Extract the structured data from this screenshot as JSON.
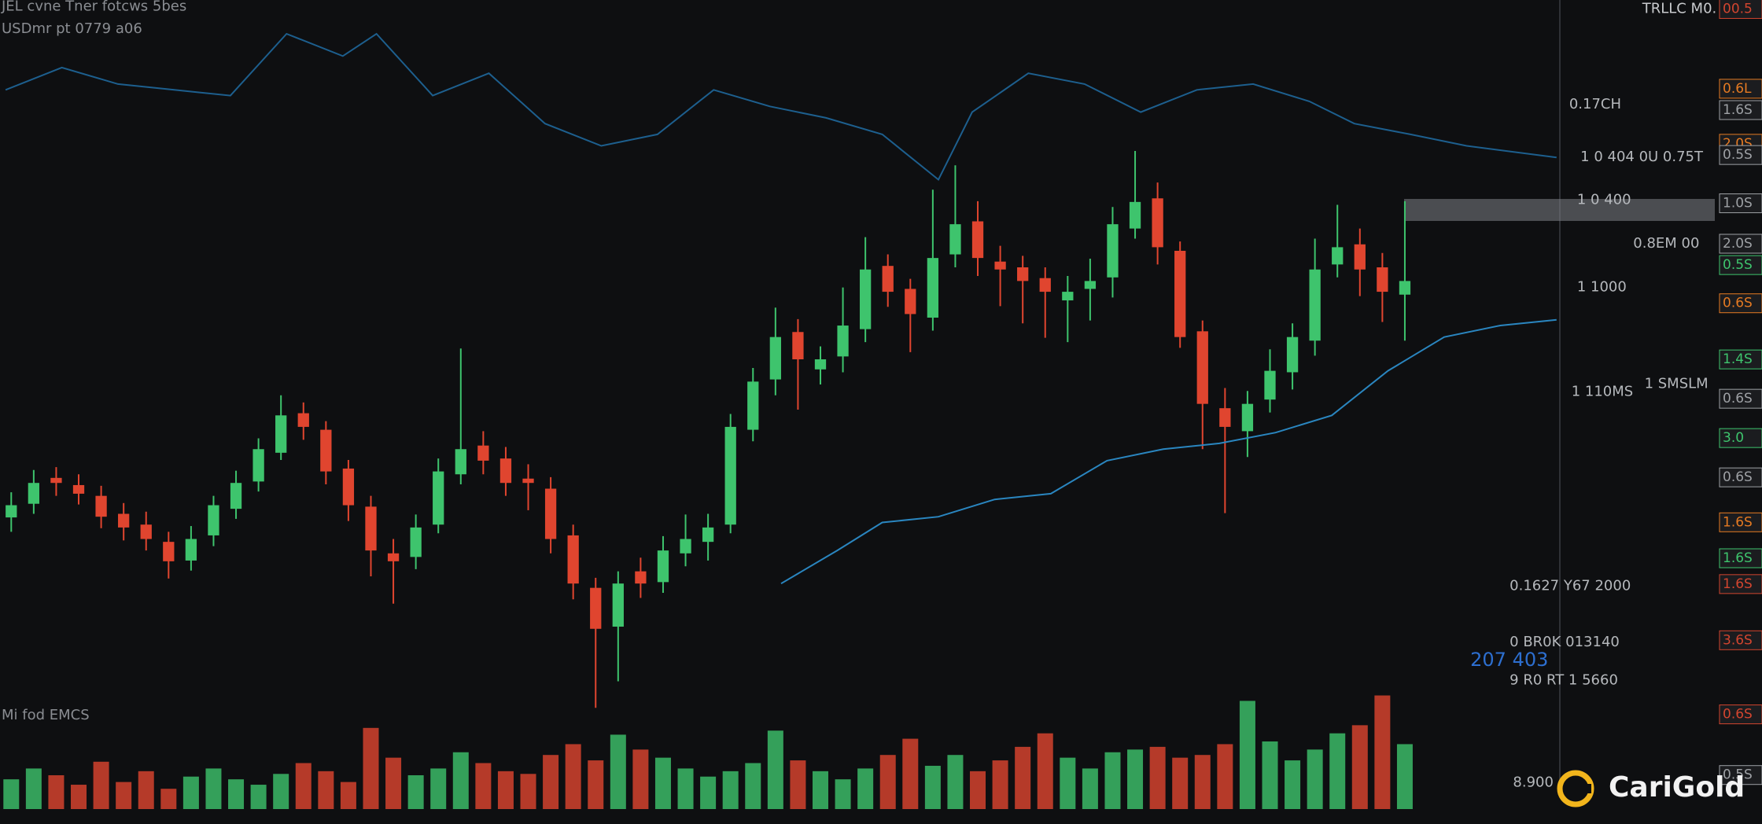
{
  "chart_data": {
    "type": "candlestick",
    "background": "#0e0f11",
    "up_color": "#3ec46d",
    "down_color": "#e0452f",
    "xlim": [
      -0.5,
      76
    ],
    "ylim": [
      0,
      100
    ],
    "volume_ylim": [
      0,
      100
    ],
    "open": [
      28,
      29.9,
      33.5,
      32.5,
      31,
      28.5,
      27,
      24.6,
      22,
      25.5,
      29.2,
      33,
      37,
      42.5,
      40.2,
      34.8,
      29.5,
      23,
      22.5,
      27,
      34,
      38,
      36.2,
      33.4,
      32,
      25.5,
      18.2,
      12.8,
      20.5,
      19,
      23,
      24.6,
      27,
      40.2,
      47.2,
      53.8,
      48.6,
      50.4,
      54.2,
      63,
      59.8,
      55.8,
      64.6,
      69.2,
      63.6,
      62.8,
      61.3,
      58.2,
      59.8,
      61.4,
      68.2,
      72.4,
      65.1,
      53.9,
      43.2,
      40,
      44.4,
      48.2,
      52.6,
      63.2,
      66,
      62.8,
      59
    ],
    "high": [
      31.5,
      34.6,
      35,
      34,
      32.4,
      30,
      28.8,
      26,
      26.8,
      31,
      34.5,
      39,
      45,
      44,
      41.4,
      36,
      31,
      25,
      28.4,
      36.2,
      51.5,
      40,
      37.8,
      35.4,
      33.6,
      27,
      19.6,
      20.5,
      22.4,
      25.4,
      28.4,
      28.5,
      42.4,
      48.8,
      57.2,
      55.6,
      51.8,
      60,
      67,
      64.6,
      61.2,
      73.6,
      77,
      72,
      65.8,
      64.4,
      62.8,
      61.6,
      64,
      71.2,
      79,
      74.6,
      66.4,
      55.4,
      46,
      45.6,
      51.4,
      55,
      66.8,
      71.5,
      68.2,
      64.8,
      72
    ],
    "low": [
      26,
      28.5,
      31,
      29.8,
      26.5,
      24.8,
      23.4,
      19.5,
      20.6,
      24,
      27.8,
      31.6,
      36,
      38.8,
      32.6,
      27.5,
      19.8,
      16,
      20.8,
      25.8,
      32.6,
      34,
      31,
      29,
      23,
      16.6,
      1.5,
      5.2,
      16.8,
      17.5,
      21.2,
      22,
      25.8,
      38.6,
      45,
      43,
      46.5,
      48.2,
      52.4,
      57.3,
      51,
      54,
      62.8,
      61.6,
      57.4,
      55,
      53,
      52.4,
      55.4,
      58.6,
      66.8,
      63.2,
      51.6,
      37.5,
      28.6,
      36.4,
      42.6,
      45.8,
      50.5,
      61.4,
      58.8,
      55.2,
      52.6
    ],
    "close": [
      29.7,
      32.8,
      32.8,
      31.3,
      28.1,
      26.6,
      25,
      21.9,
      25,
      29.7,
      32.8,
      37.5,
      42.2,
      40.6,
      34.4,
      29.7,
      23.4,
      21.9,
      26.6,
      34.4,
      37.5,
      35.9,
      32.8,
      32.8,
      25,
      18.8,
      12.5,
      18.8,
      18.8,
      23.4,
      25,
      26.6,
      40.6,
      46.9,
      53.1,
      50,
      50,
      54.7,
      62.5,
      59.4,
      56.3,
      64.1,
      68.8,
      64.1,
      62.5,
      60.9,
      59.4,
      59.4,
      60.9,
      68.8,
      71.9,
      65.6,
      53.1,
      43.8,
      40.6,
      43.8,
      48.4,
      53.1,
      62.5,
      65.6,
      62.5,
      59.4,
      60.9
    ],
    "volume": [
      22,
      30,
      25,
      18,
      35,
      20,
      28,
      15,
      24,
      30,
      22,
      18,
      26,
      34,
      28,
      20,
      60,
      38,
      25,
      30,
      42,
      34,
      28,
      26,
      40,
      48,
      36,
      55,
      44,
      38,
      30,
      24,
      28,
      34,
      58,
      36,
      28,
      22,
      30,
      40,
      52,
      32,
      40,
      28,
      36,
      46,
      56,
      38,
      30,
      42,
      44,
      46,
      38,
      40,
      48,
      80,
      50,
      36,
      44,
      56,
      62,
      84,
      48
    ],
    "lines": [
      {
        "color": "#1d5f8e",
        "x": [
          -0.25,
          2.25,
          4.75,
          7.25,
          9.75,
          12.25,
          14.75,
          16.25,
          18.75,
          21.25,
          23.75,
          26.25,
          28.75,
          31.25,
          33.75,
          36.25,
          38.75,
          41.25,
          42.75,
          45.25,
          47.75,
          50.25,
          52.75,
          55.25,
          57.75,
          59.75,
          62.25,
          64.75,
          68.75
        ],
        "values": [
          87.5,
          90.6,
          88.3,
          87.5,
          86.7,
          95.3,
          92.2,
          95.3,
          86.7,
          89.8,
          82.8,
          79.7,
          81.3,
          87.5,
          85.2,
          83.6,
          81.3,
          75,
          84.4,
          89.8,
          88.3,
          84.4,
          87.5,
          88.3,
          85.9,
          82.8,
          81.3,
          79.7,
          78.1
        ]
      },
      {
        "color": "#2a86c0",
        "x": [
          34.25,
          36.75,
          38.75,
          41.25,
          43.75,
          46.25,
          48.75,
          51.25,
          53.75,
          56.25,
          58.75,
          61.25,
          63.75,
          66.25,
          68.75
        ],
        "values": [
          18.8,
          23.4,
          27.3,
          28.1,
          30.5,
          31.3,
          35.9,
          37.5,
          38.3,
          39.8,
          42.2,
          48.4,
          53.1,
          54.7,
          55.5
        ]
      }
    ],
    "annotations": [
      {
        "text": "JEL cvne Tner fotcws 5bes",
        "color": "#8a8d92"
      },
      {
        "text": "USDmr pt 0779 a06",
        "color": "#8a8d92"
      },
      {
        "text": "TRLLC M0.",
        "color": "#c8cacd"
      },
      {
        "text": "0.17CH",
        "color": "#b5b8bc"
      },
      {
        "text": "1 0 404 0U 0.75T",
        "color": "#b5b8bc"
      },
      {
        "text": "1 0 400",
        "color": "#b5b8bc"
      },
      {
        "text": "0.8EM 00",
        "color": "#b5b8bc"
      },
      {
        "text": "1 1000",
        "color": "#b5b8bc"
      },
      {
        "text": "1 110MS",
        "color": "#b5b8bc"
      },
      {
        "text": "1 SMSLM",
        "color": "#b5b8bc"
      },
      {
        "text": "0.1627 Y67 2000",
        "color": "#b5b8bc"
      },
      {
        "text": "0 BR0K 013140",
        "color": "#b5b8bc"
      },
      {
        "text": "207 403",
        "color": "#2d6fd0"
      },
      {
        "text": "9 R0 RT 1 5660",
        "color": "#b5b8bc"
      },
      {
        "text": "8.900",
        "color": "#b5b8bc"
      },
      {
        "text": "Mi fod EMCS",
        "color": "#8a8d92"
      }
    ],
    "badges": [
      {
        "text": "00.5",
        "color": "#d2452f"
      },
      {
        "text": "0.6L",
        "color": "#e57a22"
      },
      {
        "text": "1.6S",
        "color": "#9ea1a5"
      },
      {
        "text": "2.0S",
        "color": "#e57a22"
      },
      {
        "text": "0.5S",
        "color": "#9ea1a5"
      },
      {
        "text": "1.0S",
        "color": "#9ea1a5"
      },
      {
        "text": "2.0S",
        "color": "#9ea1a5"
      },
      {
        "text": "0.5S",
        "color": "#3ec46d"
      },
      {
        "text": "0.6S",
        "color": "#e57a22"
      },
      {
        "text": "1.4S",
        "color": "#3ec46d"
      },
      {
        "text": "0.6S",
        "color": "#9ea1a5"
      },
      {
        "text": "3.0",
        "color": "#3ec46d"
      },
      {
        "text": "0.6S",
        "color": "#9ea1a5"
      },
      {
        "text": "1.6S",
        "color": "#e57a22"
      },
      {
        "text": "1.6S",
        "color": "#3ec46d"
      },
      {
        "text": "1.6S",
        "color": "#d2452f"
      },
      {
        "text": "3.6S",
        "color": "#d2452f"
      },
      {
        "text": "0.6S",
        "color": "#d2452f"
      },
      {
        "text": "0.5S",
        "color": "#9ea1a5"
      }
    ],
    "logo": "CariGold"
  }
}
